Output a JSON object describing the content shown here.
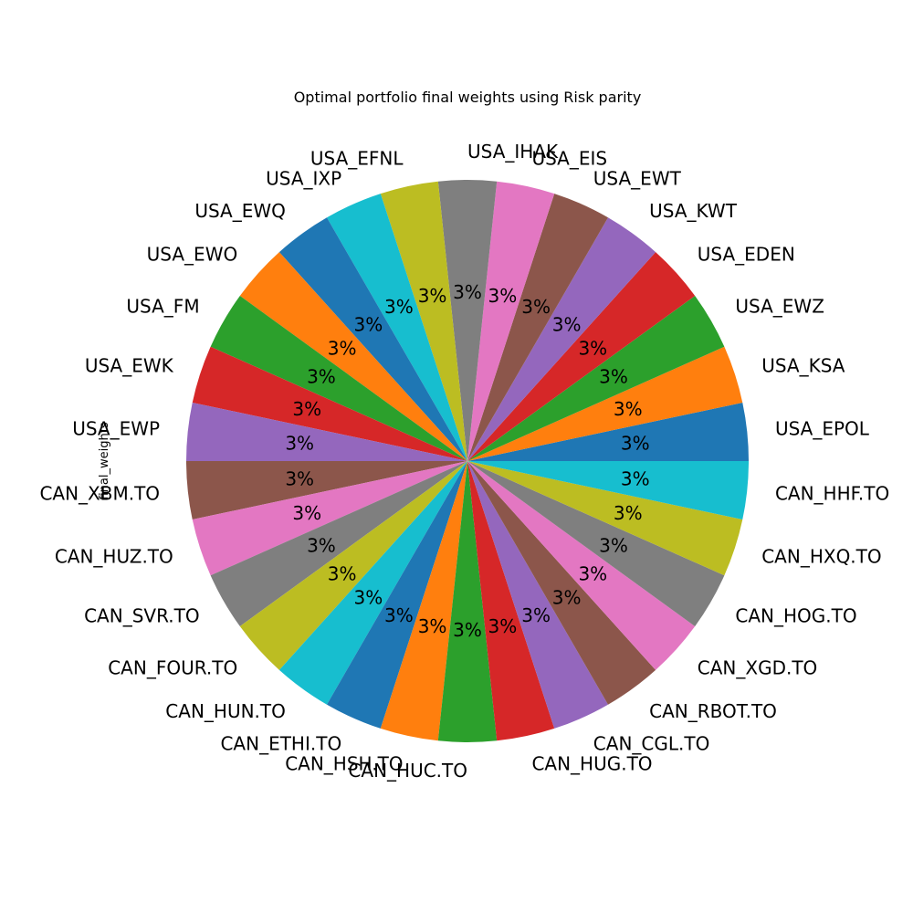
{
  "chart_data": {
    "type": "pie",
    "title": "Optimal portfolio final weights using Risk parity",
    "ylabel": "final_weights",
    "autopct_labels": "3%",
    "start_angle_deg": 0,
    "direction": "counterclockwise",
    "slices": [
      {
        "label": "USA_EPOL",
        "value": 3.125,
        "pct": "3%",
        "color": "#1f77b4"
      },
      {
        "label": "USA_KSA",
        "value": 3.125,
        "pct": "3%",
        "color": "#ff7f0e"
      },
      {
        "label": "USA_EWZ",
        "value": 3.125,
        "pct": "3%",
        "color": "#2ca02c"
      },
      {
        "label": "USA_EDEN",
        "value": 3.125,
        "pct": "3%",
        "color": "#d62728"
      },
      {
        "label": "USA_KWT",
        "value": 3.125,
        "pct": "3%",
        "color": "#9467bd"
      },
      {
        "label": "USA_EWT",
        "value": 3.125,
        "pct": "3%",
        "color": "#8c564b"
      },
      {
        "label": "USA_EIS",
        "value": 3.125,
        "pct": "3%",
        "color": "#e377c2"
      },
      {
        "label": "USA_IHAK",
        "value": 3.125,
        "pct": "3%",
        "color": "#7f7f7f"
      },
      {
        "label": "USA_EFNL",
        "value": 3.125,
        "pct": "3%",
        "color": "#bcbd22"
      },
      {
        "label": "USA_IXP",
        "value": 3.125,
        "pct": "3%",
        "color": "#17becf"
      },
      {
        "label": "USA_EWQ",
        "value": 3.125,
        "pct": "3%",
        "color": "#1f77b4"
      },
      {
        "label": "USA_EWO",
        "value": 3.125,
        "pct": "3%",
        "color": "#ff7f0e"
      },
      {
        "label": "USA_FM",
        "value": 3.125,
        "pct": "3%",
        "color": "#2ca02c"
      },
      {
        "label": "USA_EWK",
        "value": 3.125,
        "pct": "3%",
        "color": "#d62728"
      },
      {
        "label": "USA_EWP",
        "value": 3.125,
        "pct": "3%",
        "color": "#9467bd"
      },
      {
        "label": "CAN_XBM.TO",
        "value": 3.125,
        "pct": "3%",
        "color": "#8c564b"
      },
      {
        "label": "CAN_HUZ.TO",
        "value": 3.125,
        "pct": "3%",
        "color": "#e377c2"
      },
      {
        "label": "CAN_SVR.TO",
        "value": 3.125,
        "pct": "3%",
        "color": "#7f7f7f"
      },
      {
        "label": "CAN_FOUR.TO",
        "value": 3.125,
        "pct": "3%",
        "color": "#bcbd22"
      },
      {
        "label": "CAN_HUN.TO",
        "value": 3.125,
        "pct": "3%",
        "color": "#17becf"
      },
      {
        "label": "CAN_ETHI.TO",
        "value": 3.125,
        "pct": "3%",
        "color": "#1f77b4"
      },
      {
        "label": "CAN_HSH.TO",
        "value": 3.125,
        "pct": "3%",
        "color": "#ff7f0e"
      },
      {
        "label": "CAN_HUC.TO",
        "value": 3.125,
        "pct": "3%",
        "color": "#2ca02c"
      },
      {
        "label": "CAN_HUG.TO",
        "value": 3.125,
        "pct": "3%",
        "color": "#d62728"
      },
      {
        "label": "CAN_CGL.TO",
        "value": 3.125,
        "pct": "3%",
        "color": "#9467bd"
      },
      {
        "label": "CAN_RBOT.TO",
        "value": 3.125,
        "pct": "3%",
        "color": "#8c564b"
      },
      {
        "label": "CAN_XGD.TO",
        "value": 3.125,
        "pct": "3%",
        "color": "#e377c2"
      },
      {
        "label": "CAN_HOG.TO",
        "value": 3.125,
        "pct": "3%",
        "color": "#7f7f7f"
      },
      {
        "label": "CAN_HXQ.TO",
        "value": 3.125,
        "pct": "3%",
        "color": "#bcbd22"
      },
      {
        "label": "CAN_HHF.TO",
        "value": 3.125,
        "pct": "3%",
        "color": "#17becf"
      }
    ]
  }
}
